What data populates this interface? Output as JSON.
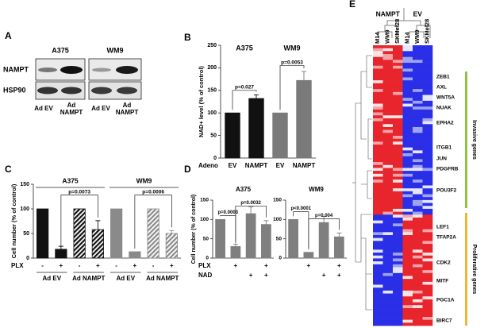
{
  "panel_letters": [
    "A",
    "B",
    "C",
    "D",
    "E"
  ],
  "blot": {
    "cell_lines": [
      "A375",
      "WM9"
    ],
    "proteins": [
      "NAMPT",
      "HSP90"
    ],
    "lanes": [
      "Ad EV",
      "Ad NAMPT",
      "Ad EV",
      "Ad NAMPT"
    ]
  },
  "chart_data": [
    {
      "type": "bar",
      "ylabel": "NAD+ level (% of control)",
      "groups": [
        "A375",
        "WM9"
      ],
      "rows": [
        {
          "label": "Adeno",
          "values": [
            "EV",
            "NAMPT",
            "EV",
            "NAMPT"
          ]
        }
      ],
      "values": [
        100,
        132,
        100,
        172
      ],
      "errors": [
        null,
        8,
        null,
        20
      ],
      "colors": [
        "#111111",
        "#111111",
        "#7a7a7a",
        "#7a7a7a"
      ],
      "annotations": [
        "p=0.027",
        "p=0.0053"
      ],
      "ylim": [
        0,
        250
      ],
      "yticks": [
        0,
        50,
        100,
        150,
        200,
        250
      ]
    },
    {
      "type": "bar",
      "ylabel": "Cell number (% of control)",
      "groups": [
        "A375",
        "WM9"
      ],
      "rows": [
        {
          "label": "PLX",
          "values": [
            "-",
            "+",
            "-",
            "+",
            "-",
            "+",
            "-",
            "+"
          ]
        }
      ],
      "subgroups": [
        "Ad EV",
        "Ad NAMPT",
        "Ad EV",
        "Ad NAMPT"
      ],
      "values": [
        100,
        18,
        100,
        58,
        100,
        13,
        100,
        50
      ],
      "errors": [
        null,
        6,
        null,
        18,
        null,
        null,
        null,
        6
      ],
      "colors": [
        "#111111",
        "#111111",
        "#111111",
        "#111111",
        "#8a8a8a",
        "#8a8a8a",
        "#8a8a8a",
        "#8a8a8a"
      ],
      "hatched": [
        false,
        false,
        true,
        true,
        false,
        false,
        true,
        true
      ],
      "annotations": [
        "p=0.0073",
        "p=0.0006"
      ],
      "ylim": [
        0,
        150
      ],
      "yticks": [
        0,
        50,
        100,
        150
      ]
    },
    {
      "type": "bar",
      "title": "A375",
      "ylabel": "Cell number (% of control)",
      "rows": [
        {
          "label": "PLX",
          "values": [
            null,
            "+",
            null,
            "+"
          ]
        },
        {
          "label": "NAD",
          "values": [
            null,
            null,
            "+",
            "+"
          ]
        }
      ],
      "values": [
        100,
        30,
        115,
        87
      ],
      "errors": [
        null,
        6,
        18,
        10
      ],
      "colors": [
        "#7f7f7f",
        "#7f7f7f",
        "#7f7f7f",
        "#7f7f7f"
      ],
      "annotations": [
        "p=0.0003",
        "p=0.0032"
      ],
      "ylim": [
        0,
        150
      ],
      "yticks": [
        0,
        50,
        100,
        150
      ]
    },
    {
      "type": "bar",
      "title": "WM9",
      "rows": [
        {
          "values": [
            null,
            "+",
            null,
            "+"
          ]
        },
        {
          "values": [
            null,
            null,
            "+",
            "+"
          ]
        }
      ],
      "values": [
        100,
        15,
        92,
        55
      ],
      "errors": [
        null,
        null,
        16,
        10
      ],
      "colors": [
        "#7f7f7f",
        "#7f7f7f",
        "#7f7f7f",
        "#7f7f7f"
      ],
      "annotations": [
        "p<0.0001",
        "p=0.004"
      ],
      "ylim": [
        0,
        150
      ],
      "yticks": [
        0,
        50,
        100,
        150
      ]
    }
  ],
  "heatmap": {
    "groups": [
      "NAMPT",
      "EV"
    ],
    "samples": [
      "M14",
      "WM9",
      "SKMel28",
      "M14",
      "WM9",
      "SKMel28"
    ],
    "genes": [
      "ZEB1",
      "AXL",
      "WNT5A",
      "NUAK",
      "EPHA2",
      "ITGB1",
      "JUN",
      "PDGFRB",
      "POU3F2",
      "LEF1",
      "TFAP2A",
      "CDK2",
      "MITF",
      "PGC1A",
      "BIRC7"
    ],
    "gene_sets": [
      "Invasive genes",
      "Proliferative genes"
    ]
  }
}
